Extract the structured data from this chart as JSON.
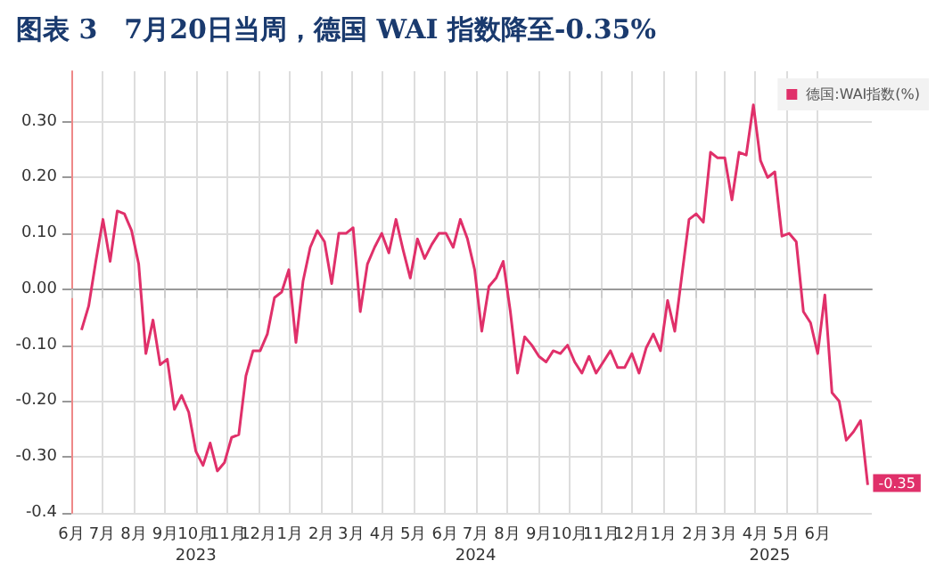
{
  "chart_data": {
    "type": "line",
    "title": "图表 3　7月20日当周，德国 WAI 指数降至-0.35%",
    "x": [
      "2023-06-11",
      "2023-06-18",
      "2023-06-25",
      "2023-07-02",
      "2023-07-09",
      "2023-07-16",
      "2023-07-23",
      "2023-07-30",
      "2023-08-06",
      "2023-08-13",
      "2023-08-20",
      "2023-08-27",
      "2023-09-03",
      "2023-09-10",
      "2023-09-17",
      "2023-09-24",
      "2023-10-01",
      "2023-10-08",
      "2023-10-15",
      "2023-10-22",
      "2023-10-29",
      "2023-11-05",
      "2023-11-12",
      "2023-11-19",
      "2023-11-26",
      "2023-12-03",
      "2023-12-10",
      "2023-12-17",
      "2023-12-24",
      "2023-12-31",
      "2024-01-07",
      "2024-01-14",
      "2024-01-21",
      "2024-01-28",
      "2024-02-04",
      "2024-02-11",
      "2024-02-18",
      "2024-02-25",
      "2024-03-03",
      "2024-03-10",
      "2024-03-17",
      "2024-03-24",
      "2024-03-31",
      "2024-04-07",
      "2024-04-14",
      "2024-04-21",
      "2024-04-28",
      "2024-05-05",
      "2024-05-12",
      "2024-05-19",
      "2024-05-26",
      "2024-06-02",
      "2024-06-09",
      "2024-06-16",
      "2024-06-23",
      "2024-06-30",
      "2024-07-07",
      "2024-07-14",
      "2024-07-21",
      "2024-07-28",
      "2024-08-04",
      "2024-08-11",
      "2024-08-18",
      "2024-08-25",
      "2024-09-01",
      "2024-09-08",
      "2024-09-15",
      "2024-09-22",
      "2024-09-29",
      "2024-10-06",
      "2024-10-13",
      "2024-10-20",
      "2024-10-27",
      "2024-11-03",
      "2024-11-10",
      "2024-11-17",
      "2024-11-24",
      "2024-12-01",
      "2024-12-08",
      "2024-12-15",
      "2024-12-22",
      "2024-12-29",
      "2025-01-05",
      "2025-01-12",
      "2025-01-19",
      "2025-01-26",
      "2025-02-02",
      "2025-02-09",
      "2025-02-16",
      "2025-02-23",
      "2025-03-02",
      "2025-03-09",
      "2025-03-16",
      "2025-03-23",
      "2025-03-30",
      "2025-04-06",
      "2025-04-13",
      "2025-04-20",
      "2025-04-27",
      "2025-05-04",
      "2025-05-11",
      "2025-05-18",
      "2025-05-25",
      "2025-06-01",
      "2025-06-08",
      "2025-06-15",
      "2025-06-22",
      "2025-06-29",
      "2025-07-06",
      "2025-07-13",
      "2025-07-20"
    ],
    "series": [
      {
        "name": "德国:WAI指数(%)",
        "color": "#e0306a",
        "values": [
          -0.073,
          -0.03,
          0.05,
          0.125,
          0.05,
          0.14,
          0.135,
          0.105,
          0.045,
          -0.115,
          -0.055,
          -0.135,
          -0.125,
          -0.215,
          -0.19,
          -0.22,
          -0.29,
          -0.315,
          -0.275,
          -0.325,
          -0.31,
          -0.265,
          -0.26,
          -0.155,
          -0.11,
          -0.11,
          -0.08,
          -0.015,
          -0.005,
          0.035,
          -0.095,
          0.015,
          0.075,
          0.105,
          0.085,
          0.01,
          0.1,
          0.1,
          0.11,
          -0.04,
          0.045,
          0.075,
          0.1,
          0.065,
          0.125,
          0.07,
          0.02,
          0.09,
          0.055,
          0.08,
          0.1,
          0.1,
          0.075,
          0.125,
          0.09,
          0.035,
          -0.075,
          0.005,
          0.02,
          0.05,
          -0.04,
          -0.15,
          -0.085,
          -0.1,
          -0.12,
          -0.13,
          -0.11,
          -0.115,
          -0.1,
          -0.13,
          -0.15,
          -0.12,
          -0.15,
          -0.13,
          -0.11,
          -0.14,
          -0.14,
          -0.115,
          -0.15,
          -0.105,
          -0.08,
          -0.11,
          -0.02,
          -0.075,
          0.025,
          0.125,
          0.135,
          0.12,
          0.245,
          0.235,
          0.235,
          0.16,
          0.245,
          0.24,
          0.33,
          0.23,
          0.2,
          0.21,
          0.095,
          0.1,
          0.085,
          -0.04,
          -0.06,
          -0.115,
          -0.01,
          -0.185,
          -0.2,
          -0.27,
          -0.255,
          -0.235,
          -0.35
        ]
      }
    ],
    "annotations": [
      {
        "text": "-0.35",
        "x": "2025-07-20",
        "y": -0.35
      }
    ],
    "xlim": [
      "2023-06-01",
      "2025-07-24"
    ],
    "xticks": [
      {
        "value": "2023-06-01",
        "label": "6月"
      },
      {
        "value": "2023-07-01",
        "label": "7月"
      },
      {
        "value": "2023-08-01",
        "label": "8月"
      },
      {
        "value": "2023-09-01",
        "label": "9月"
      },
      {
        "value": "2023-10-01",
        "label": "10月"
      },
      {
        "value": "2023-11-01",
        "label": "11月"
      },
      {
        "value": "2023-12-01",
        "label": "12月"
      },
      {
        "value": "2024-01-01",
        "label": "1月"
      },
      {
        "value": "2024-02-01",
        "label": "2月"
      },
      {
        "value": "2024-03-01",
        "label": "3月"
      },
      {
        "value": "2024-04-01",
        "label": "4月"
      },
      {
        "value": "2024-05-01",
        "label": "5月"
      },
      {
        "value": "2024-06-01",
        "label": "6月"
      },
      {
        "value": "2024-07-01",
        "label": "7月"
      },
      {
        "value": "2024-08-01",
        "label": "8月"
      },
      {
        "value": "2024-09-01",
        "label": "9月"
      },
      {
        "value": "2024-10-01",
        "label": "10月"
      },
      {
        "value": "2024-11-01",
        "label": "11月"
      },
      {
        "value": "2024-12-01",
        "label": "12月"
      },
      {
        "value": "2025-01-01",
        "label": "1月"
      },
      {
        "value": "2025-02-01",
        "label": "2月"
      },
      {
        "value": "2025-03-01",
        "label": "3月"
      },
      {
        "value": "2025-04-01",
        "label": "4月"
      },
      {
        "value": "2025-05-01",
        "label": "5月"
      },
      {
        "value": "2025-06-01",
        "label": "6月"
      }
    ],
    "x2lim": [
      "2023-06-01",
      "2025-07-24"
    ],
    "x2ticks": [
      {
        "value": "2023-10-01",
        "label": "2023"
      },
      {
        "value": "2024-07-01",
        "label": "2024"
      },
      {
        "value": "2025-04-15",
        "label": "2025"
      }
    ],
    "ylim": [
      -0.4,
      0.39
    ],
    "yticks": [
      {
        "value": -0.4,
        "label": "-0.4"
      },
      {
        "value": -0.3,
        "label": "-0.30"
      },
      {
        "value": -0.2,
        "label": "-0.20"
      },
      {
        "value": -0.1,
        "label": "-0.10"
      },
      {
        "value": 0,
        "label": "0.00"
      },
      {
        "value": 0.1,
        "label": "0.10"
      },
      {
        "value": 0.2,
        "label": "0.20"
      },
      {
        "value": 0.3,
        "label": "0.30"
      }
    ],
    "grid": true,
    "legend": "top right",
    "marker": "none",
    "line_style": "solid"
  }
}
